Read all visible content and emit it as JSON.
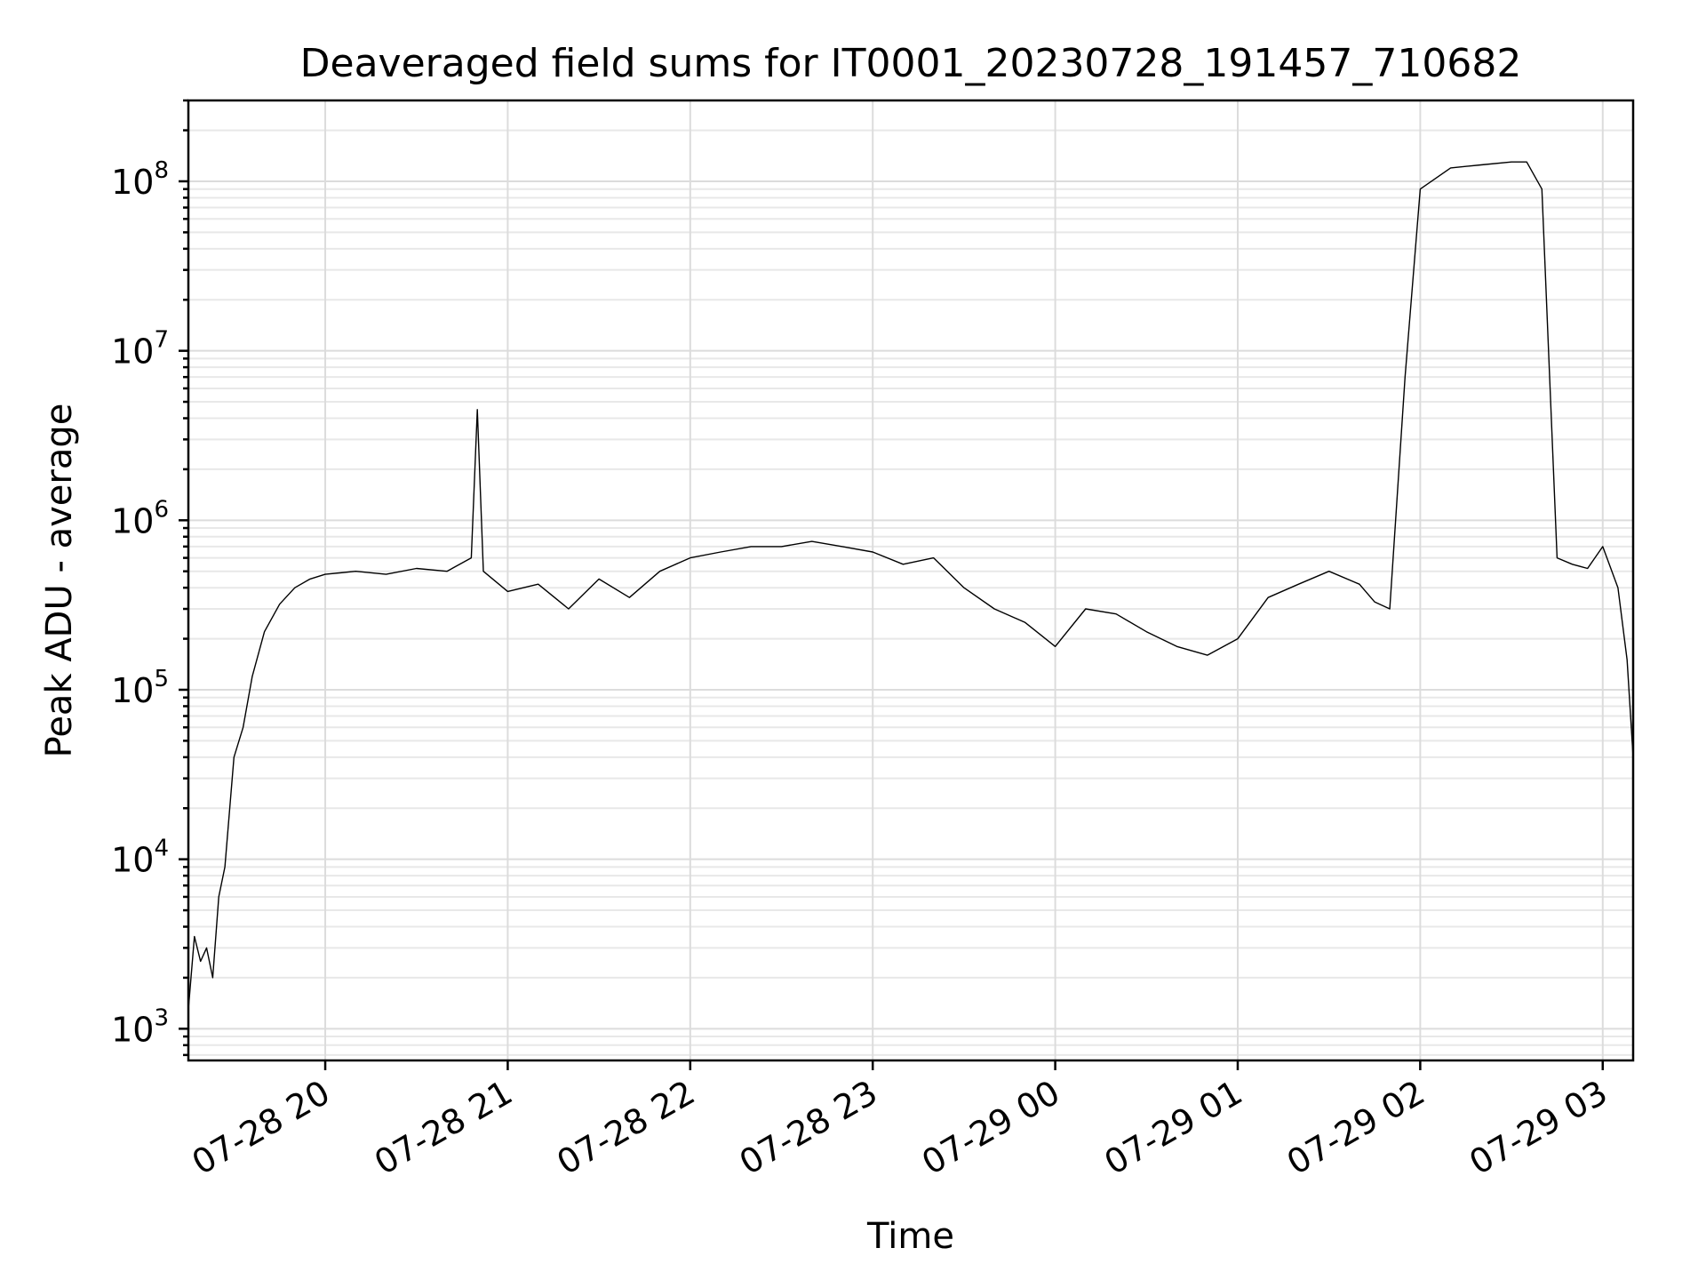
{
  "chart_data": {
    "type": "line",
    "title": "Deaveraged field sums for IT0001_20230728_191457_710682",
    "xlabel": "Time",
    "ylabel": "Peak ADU - average",
    "yscale": "log",
    "xlim": [
      "2023-07-28T19:15:00",
      "2023-07-29T03:10:00"
    ],
    "ylim": [
      650,
      300000000
    ],
    "grid": true,
    "x_ticks": [
      {
        "value": "2023-07-28T20:00:00",
        "label": "07-28 20"
      },
      {
        "value": "2023-07-28T21:00:00",
        "label": "07-28 21"
      },
      {
        "value": "2023-07-28T22:00:00",
        "label": "07-28 22"
      },
      {
        "value": "2023-07-28T23:00:00",
        "label": "07-28 23"
      },
      {
        "value": "2023-07-29T00:00:00",
        "label": "07-29 00"
      },
      {
        "value": "2023-07-29T01:00:00",
        "label": "07-29 01"
      },
      {
        "value": "2023-07-29T02:00:00",
        "label": "07-29 02"
      },
      {
        "value": "2023-07-29T03:00:00",
        "label": "07-29 03"
      }
    ],
    "y_ticks": [
      {
        "value": 1000,
        "base": "10",
        "exp": "3"
      },
      {
        "value": 10000,
        "base": "10",
        "exp": "4"
      },
      {
        "value": 100000,
        "base": "10",
        "exp": "5"
      },
      {
        "value": 1000000,
        "base": "10",
        "exp": "6"
      },
      {
        "value": 10000000,
        "base": "10",
        "exp": "7"
      },
      {
        "value": 100000000,
        "base": "10",
        "exp": "8"
      }
    ],
    "series": [
      {
        "color": "#000000",
        "x": [
          "2023-07-28T19:15:00",
          "2023-07-28T19:17:00",
          "2023-07-28T19:19:00",
          "2023-07-28T19:21:00",
          "2023-07-28T19:23:00",
          "2023-07-28T19:25:00",
          "2023-07-28T19:27:00",
          "2023-07-28T19:30:00",
          "2023-07-28T19:33:00",
          "2023-07-28T19:36:00",
          "2023-07-28T19:40:00",
          "2023-07-28T19:45:00",
          "2023-07-28T19:50:00",
          "2023-07-28T19:55:00",
          "2023-07-28T20:00:00",
          "2023-07-28T20:10:00",
          "2023-07-28T20:20:00",
          "2023-07-28T20:30:00",
          "2023-07-28T20:40:00",
          "2023-07-28T20:48:00",
          "2023-07-28T20:50:00",
          "2023-07-28T20:52:00",
          "2023-07-28T21:00:00",
          "2023-07-28T21:10:00",
          "2023-07-28T21:20:00",
          "2023-07-28T21:30:00",
          "2023-07-28T21:40:00",
          "2023-07-28T21:50:00",
          "2023-07-28T22:00:00",
          "2023-07-28T22:10:00",
          "2023-07-28T22:20:00",
          "2023-07-28T22:30:00",
          "2023-07-28T22:40:00",
          "2023-07-28T22:50:00",
          "2023-07-28T23:00:00",
          "2023-07-28T23:10:00",
          "2023-07-28T23:20:00",
          "2023-07-28T23:30:00",
          "2023-07-28T23:40:00",
          "2023-07-28T23:50:00",
          "2023-07-29T00:00:00",
          "2023-07-29T00:10:00",
          "2023-07-29T00:20:00",
          "2023-07-29T00:30:00",
          "2023-07-29T00:40:00",
          "2023-07-29T00:50:00",
          "2023-07-29T01:00:00",
          "2023-07-29T01:10:00",
          "2023-07-29T01:20:00",
          "2023-07-29T01:30:00",
          "2023-07-29T01:40:00",
          "2023-07-29T01:45:00",
          "2023-07-29T01:50:00",
          "2023-07-29T01:55:00",
          "2023-07-29T02:00:00",
          "2023-07-29T02:10:00",
          "2023-07-29T02:20:00",
          "2023-07-29T02:30:00",
          "2023-07-29T02:35:00",
          "2023-07-29T02:40:00",
          "2023-07-29T02:45:00",
          "2023-07-29T02:50:00",
          "2023-07-29T02:55:00",
          "2023-07-29T03:00:00",
          "2023-07-29T03:05:00",
          "2023-07-29T03:08:00",
          "2023-07-29T03:10:00"
        ],
        "y": [
          1300,
          3500,
          2500,
          3000,
          2000,
          6000,
          9000,
          40000,
          60000,
          120000,
          220000,
          320000,
          400000,
          450000,
          480000,
          500000,
          480000,
          520000,
          500000,
          600000,
          4500000,
          500000,
          380000,
          420000,
          300000,
          450000,
          350000,
          500000,
          600000,
          650000,
          700000,
          700000,
          750000,
          700000,
          650000,
          550000,
          600000,
          400000,
          300000,
          250000,
          180000,
          300000,
          280000,
          220000,
          180000,
          160000,
          200000,
          350000,
          420000,
          500000,
          420000,
          330000,
          300000,
          7000000,
          90000000,
          120000000,
          125000000,
          130000000,
          130000000,
          90000000,
          600000,
          550000,
          520000,
          700000,
          400000,
          150000,
          40000
        ]
      }
    ]
  }
}
